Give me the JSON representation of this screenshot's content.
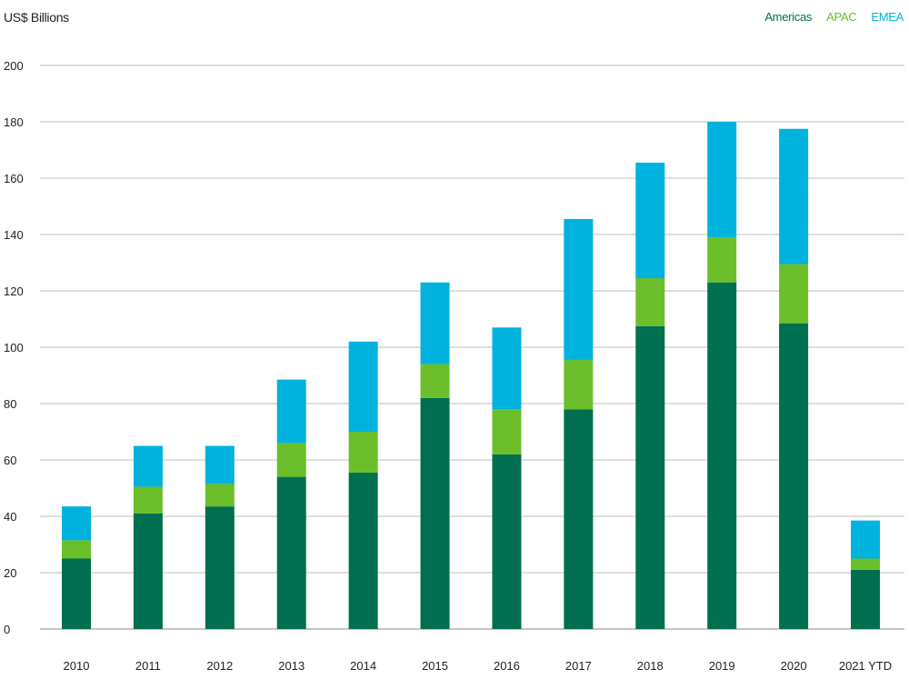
{
  "chart_data": {
    "type": "bar",
    "stacked": true,
    "ylabel": "US$ Billions",
    "ylim": [
      0,
      200
    ],
    "yticks": [
      0,
      20,
      40,
      60,
      80,
      100,
      120,
      140,
      160,
      180,
      200
    ],
    "categories": [
      "2010",
      "2011",
      "2012",
      "2013",
      "2014",
      "2015",
      "2016",
      "2017",
      "2018",
      "2019",
      "2020",
      "2021 YTD"
    ],
    "series": [
      {
        "name": "Americas",
        "color": "#006f4f",
        "values": [
          25,
          41,
          43.5,
          54,
          55.5,
          82,
          62,
          78,
          107.5,
          123,
          108.5,
          21
        ]
      },
      {
        "name": "APAC",
        "color": "#6abf2b",
        "values": [
          6.5,
          9.5,
          8,
          12,
          14.5,
          12,
          16,
          17.5,
          17,
          16,
          21,
          4
        ]
      },
      {
        "name": "EMEA",
        "color": "#00b2de",
        "values": [
          12,
          14.5,
          13.5,
          22.5,
          32,
          29,
          29,
          50,
          41,
          41,
          48,
          13.5
        ]
      }
    ],
    "grid": true,
    "legend_position": "top-right"
  }
}
